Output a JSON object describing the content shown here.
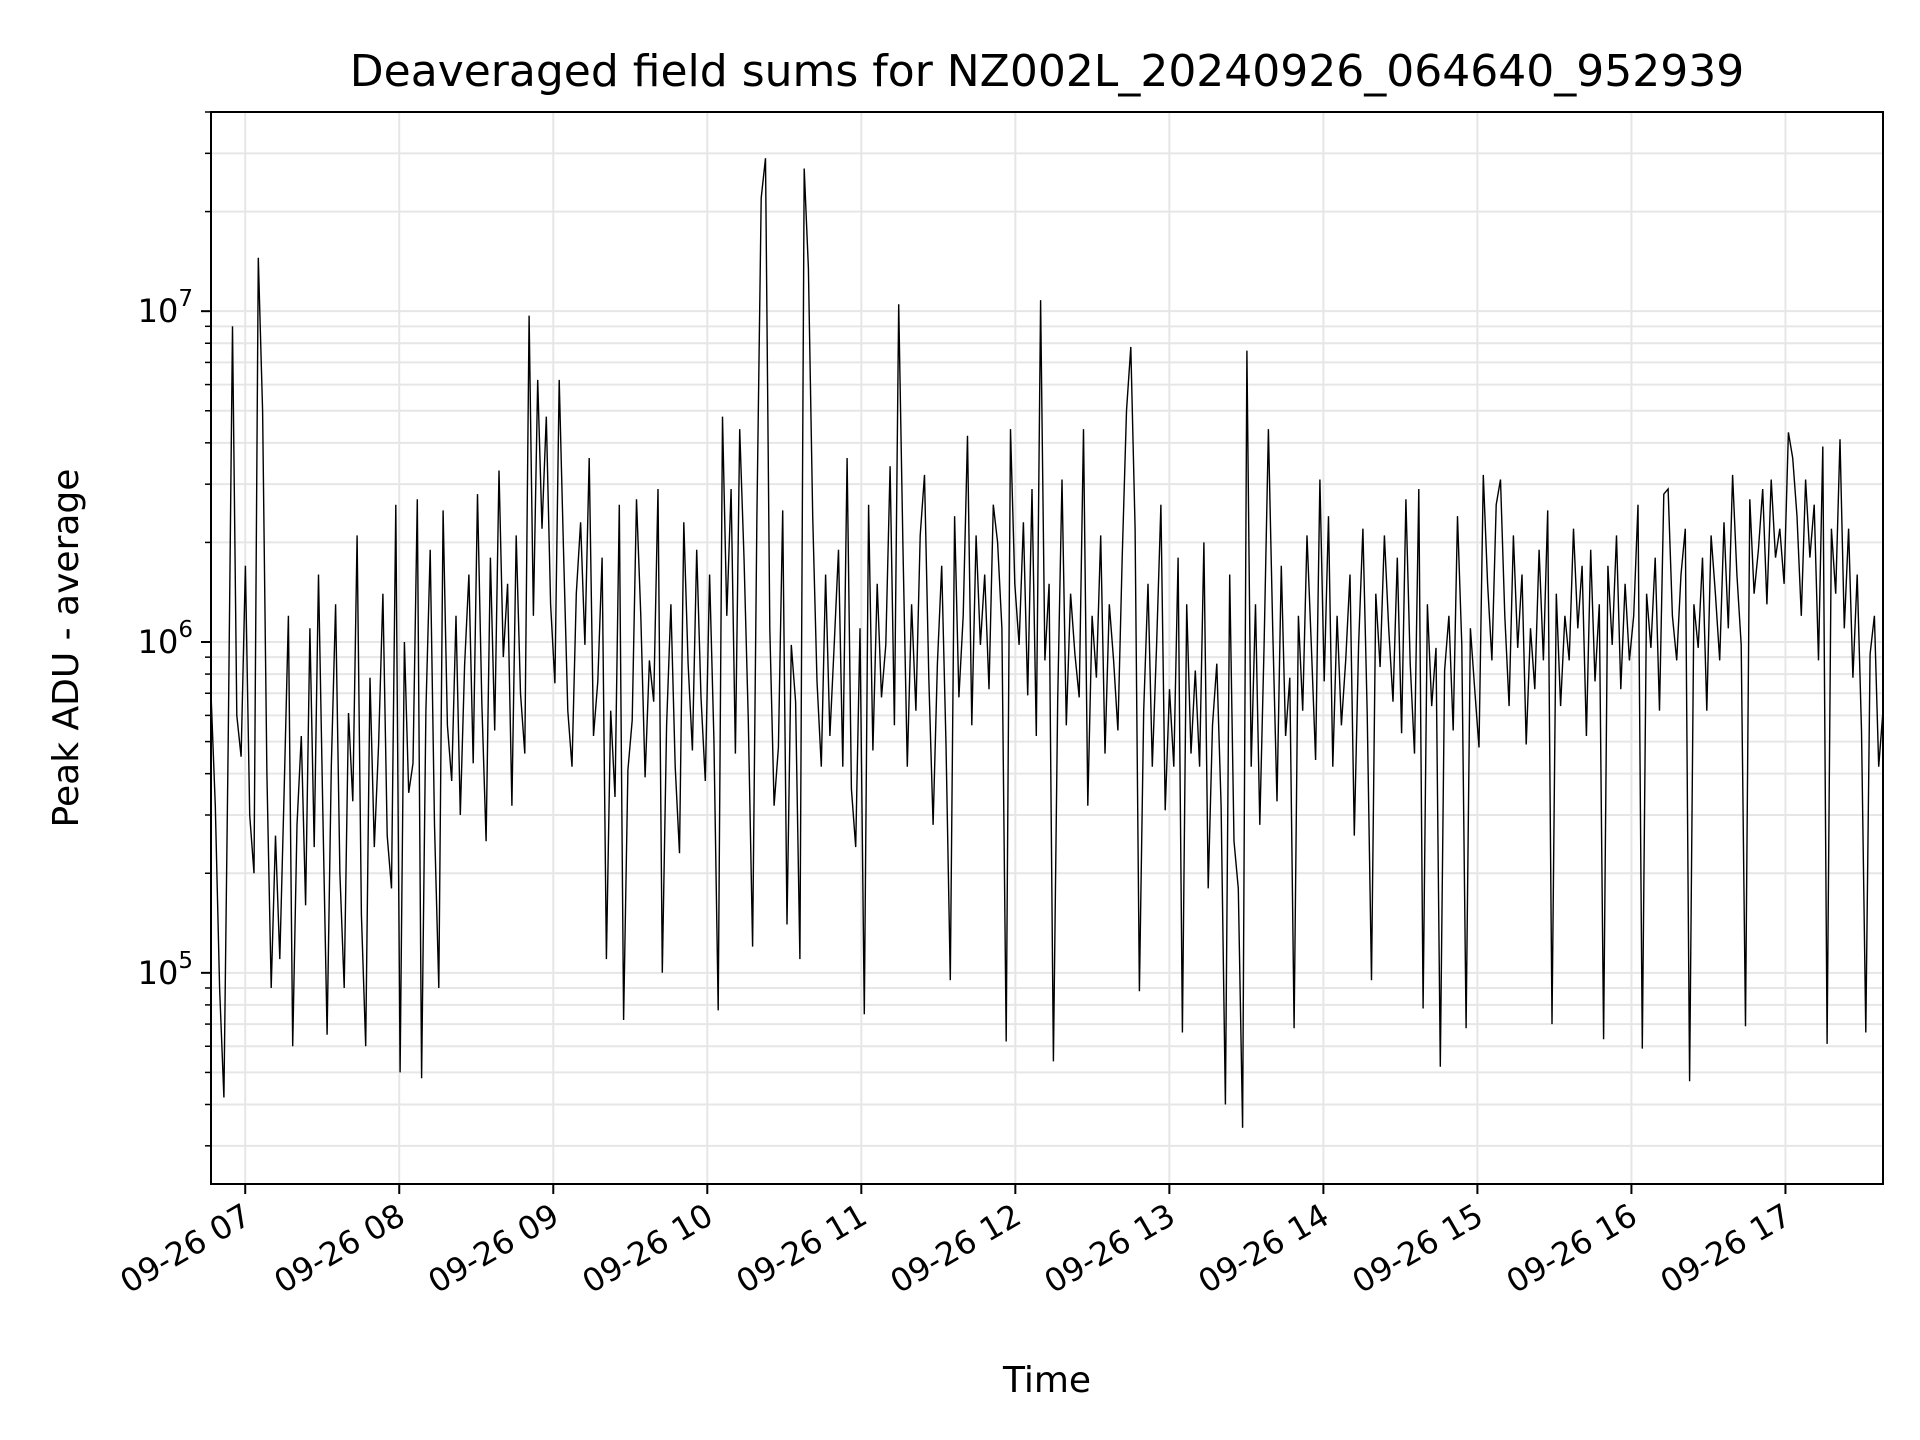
{
  "chart_data": {
    "type": "line",
    "title": "Deaveraged field sums for NZ002L_20240926_064640_952939",
    "xlabel": "Time",
    "ylabel": "Peak ADU - average",
    "yscale": "log",
    "ylim": [
      23000,
      40000000
    ],
    "xlim": [
      "2024-09-26 06:46:40",
      "2024-09-26 17:38:00"
    ],
    "grid": true,
    "line_color": "#000000",
    "x_ticks": [
      "09-26 07",
      "09-26 08",
      "09-26 09",
      "09-26 10",
      "09-26 11",
      "09-26 12",
      "09-26 13",
      "09-26 14",
      "09-26 15",
      "09-26 16",
      "09-26 17"
    ],
    "y_ticks": [
      {
        "value": 100000,
        "base": "10",
        "exp": "5"
      },
      {
        "value": 1000000,
        "base": "10",
        "exp": "6"
      },
      {
        "value": 10000000,
        "base": "10",
        "exp": "7"
      }
    ],
    "series": [
      {
        "x_start": "2024-09-26 06:46:40",
        "x_end": "2024-09-26 17:38:00",
        "values": [
          700000,
          320000,
          90000,
          42000,
          500000,
          9000000,
          600000,
          450000,
          1700000,
          300000,
          200000,
          14500000,
          5000000,
          400000,
          90000,
          260000,
          110000,
          350000,
          1200000,
          60000,
          280000,
          520000,
          160000,
          1100000,
          240000,
          1600000,
          310000,
          65000,
          420000,
          1300000,
          200000,
          90000,
          610000,
          330000,
          2100000,
          150000,
          60000,
          780000,
          240000,
          490000,
          1400000,
          260000,
          180000,
          2600000,
          50000,
          1000000,
          350000,
          430000,
          2700000,
          48000,
          620000,
          1900000,
          280000,
          90000,
          2500000,
          560000,
          380000,
          1200000,
          300000,
          850000,
          1600000,
          430000,
          2800000,
          660000,
          250000,
          1800000,
          540000,
          3300000,
          900000,
          1500000,
          320000,
          2100000,
          700000,
          460000,
          9700000,
          1200000,
          6200000,
          2200000,
          4800000,
          1300000,
          750000,
          6200000,
          1900000,
          620000,
          420000,
          1400000,
          2300000,
          980000,
          3600000,
          520000,
          760000,
          1800000,
          110000,
          620000,
          340000,
          2600000,
          72000,
          410000,
          580000,
          2700000,
          1200000,
          390000,
          880000,
          660000,
          2900000,
          100000,
          560000,
          1300000,
          420000,
          230000,
          2300000,
          860000,
          470000,
          1900000,
          680000,
          380000,
          1600000,
          510000,
          77000,
          4800000,
          1200000,
          2900000,
          460000,
          4400000,
          1800000,
          580000,
          120000,
          2400000,
          22000000,
          29000000,
          1100000,
          320000,
          480000,
          2500000,
          140000,
          980000,
          660000,
          110000,
          27000000,
          13500000,
          2400000,
          760000,
          420000,
          1600000,
          520000,
          980000,
          1900000,
          420000,
          3600000,
          360000,
          240000,
          1100000,
          75000,
          2600000,
          470000,
          1500000,
          680000,
          980000,
          3400000,
          560000,
          10500000,
          1900000,
          420000,
          1300000,
          620000,
          2100000,
          3200000,
          780000,
          280000,
          860000,
          1700000,
          490000,
          95000,
          2400000,
          680000,
          1200000,
          4200000,
          560000,
          2100000,
          980000,
          1600000,
          720000,
          2600000,
          2000000,
          1100000,
          62000,
          4400000,
          1500000,
          980000,
          2300000,
          690000,
          2900000,
          520000,
          10800000,
          880000,
          1500000,
          54000,
          670000,
          3100000,
          560000,
          1400000,
          920000,
          680000,
          4400000,
          320000,
          1200000,
          780000,
          2100000,
          460000,
          1300000,
          880000,
          540000,
          1800000,
          5000000,
          7800000,
          2200000,
          88000,
          620000,
          1500000,
          420000,
          980000,
          2600000,
          310000,
          720000,
          420000,
          1800000,
          66000,
          1300000,
          460000,
          820000,
          420000,
          2000000,
          180000,
          560000,
          860000,
          320000,
          40000,
          1600000,
          250000,
          180000,
          34000,
          7600000,
          420000,
          1300000,
          280000,
          980000,
          4400000,
          1100000,
          330000,
          1700000,
          520000,
          780000,
          68000,
          1200000,
          620000,
          2100000,
          980000,
          440000,
          3100000,
          760000,
          2400000,
          420000,
          1200000,
          560000,
          880000,
          1600000,
          260000,
          980000,
          2200000,
          610000,
          95000,
          1400000,
          840000,
          2100000,
          1100000,
          660000,
          1800000,
          530000,
          2700000,
          860000,
          460000,
          2900000,
          78000,
          1300000,
          640000,
          960000,
          52000,
          820000,
          1200000,
          540000,
          2400000,
          980000,
          68000,
          1100000,
          720000,
          480000,
          3200000,
          1500000,
          880000,
          2600000,
          3100000,
          1200000,
          640000,
          2100000,
          960000,
          1600000,
          490000,
          1100000,
          720000,
          1900000,
          880000,
          2500000,
          70000,
          1400000,
          640000,
          1200000,
          880000,
          2200000,
          1100000,
          1700000,
          520000,
          1900000,
          760000,
          1300000,
          63000,
          1700000,
          980000,
          2100000,
          720000,
          1500000,
          880000,
          1200000,
          2600000,
          59000,
          1400000,
          960000,
          1800000,
          620000,
          2800000,
          2900000,
          1200000,
          880000,
          1600000,
          2200000,
          47000,
          1300000,
          960000,
          1800000,
          620000,
          2100000,
          1400000,
          880000,
          2300000,
          1100000,
          3200000,
          1600000,
          980000,
          69000,
          2700000,
          1400000,
          1900000,
          2900000,
          1300000,
          3100000,
          1800000,
          2200000,
          1500000,
          4300000,
          3600000,
          2400000,
          1200000,
          3100000,
          1800000,
          2600000,
          880000,
          3900000,
          61000,
          2200000,
          1400000,
          4100000,
          1100000,
          2200000,
          780000,
          1600000,
          540000,
          66000,
          920000,
          1200000,
          420000,
          620000
        ]
      }
    ]
  }
}
